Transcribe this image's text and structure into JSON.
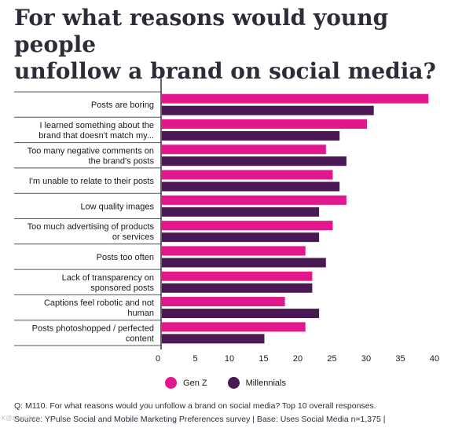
{
  "title_line1": "For what reasons would young people",
  "title_line2": "unfollow a brand on social media?",
  "chart_data": {
    "type": "bar",
    "orientation": "horizontal",
    "categories": [
      [
        "Posts are boring"
      ],
      [
        "I learned something about the",
        "brand that doesn't match my..."
      ],
      [
        "Too many negative comments on",
        "the brand's posts"
      ],
      [
        "I'm unable to relate to their posts"
      ],
      [
        "Low quality images"
      ],
      [
        "Too much advertising of products",
        "or services"
      ],
      [
        "Posts too often"
      ],
      [
        "Lack of transparency on",
        "sponsored posts"
      ],
      [
        "Captions feel robotic and not",
        "human"
      ],
      [
        "Posts photoshopped / perfected",
        "content"
      ]
    ],
    "series": [
      {
        "name": "Gen Z",
        "color": "#e2178c",
        "values": [
          39,
          30,
          24,
          25,
          27,
          25,
          21,
          22,
          18,
          21
        ]
      },
      {
        "name": "Millennials",
        "color": "#4a1953",
        "values": [
          31,
          26,
          27,
          26,
          23,
          23,
          24,
          22,
          23,
          15
        ]
      }
    ],
    "xlim": [
      0,
      40
    ],
    "xticks": [
      "0",
      "5",
      "10",
      "15",
      "20",
      "25",
      "30",
      "35",
      "40"
    ],
    "grid": false,
    "legend": "bottom-center"
  },
  "legend": {
    "genz": "Gen Z",
    "millennials": "Millennials"
  },
  "footnote": {
    "line1": "Q: M110. For what reasons would you unfollow a brand on social media? Top 10 overall responses.",
    "line2": "Source: YPulse Social and Mobile Marketing Preferences survey | Base:  Uses Social Media n=1,375 |"
  },
  "watermark": "K@zhanzhen"
}
